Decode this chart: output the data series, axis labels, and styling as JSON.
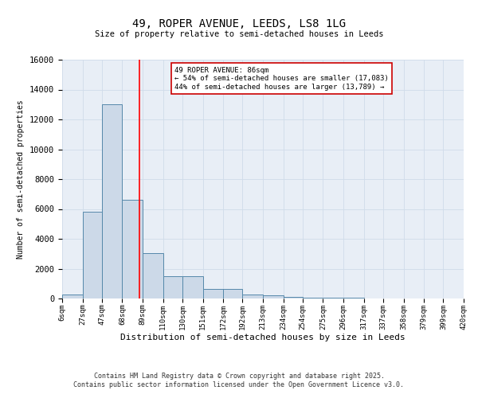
{
  "title_line1": "49, ROPER AVENUE, LEEDS, LS8 1LG",
  "title_line2": "Size of property relative to semi-detached houses in Leeds",
  "xlabel": "Distribution of semi-detached houses by size in Leeds",
  "ylabel": "Number of semi-detached properties",
  "bar_edges": [
    6,
    27,
    47,
    68,
    89,
    110,
    130,
    151,
    172,
    192,
    213,
    234,
    254,
    275,
    296,
    317,
    337,
    358,
    379,
    399,
    420
  ],
  "bar_heights": [
    250,
    5800,
    13000,
    6600,
    3050,
    1500,
    1500,
    630,
    630,
    280,
    200,
    120,
    80,
    50,
    30,
    20,
    15,
    10,
    8,
    5
  ],
  "bar_color": "#ccd9e8",
  "bar_edgecolor": "#5588aa",
  "red_line_x": 86,
  "annotation_title": "49 ROPER AVENUE: 86sqm",
  "annotation_line1": "← 54% of semi-detached houses are smaller (17,083)",
  "annotation_line2": "44% of semi-detached houses are larger (13,789) →",
  "annotation_box_color": "#ffffff",
  "annotation_box_edgecolor": "#cc0000",
  "ylim": [
    0,
    16000
  ],
  "yticks": [
    0,
    2000,
    4000,
    6000,
    8000,
    10000,
    12000,
    14000,
    16000
  ],
  "tick_labels": [
    "6sqm",
    "27sqm",
    "47sqm",
    "68sqm",
    "89sqm",
    "110sqm",
    "130sqm",
    "151sqm",
    "172sqm",
    "192sqm",
    "213sqm",
    "234sqm",
    "254sqm",
    "275sqm",
    "296sqm",
    "317sqm",
    "337sqm",
    "358sqm",
    "379sqm",
    "399sqm",
    "420sqm"
  ],
  "footer_line1": "Contains HM Land Registry data © Crown copyright and database right 2025.",
  "footer_line2": "Contains public sector information licensed under the Open Government Licence v3.0.",
  "grid_color": "#d0dcea",
  "background_color": "#e8eef6"
}
